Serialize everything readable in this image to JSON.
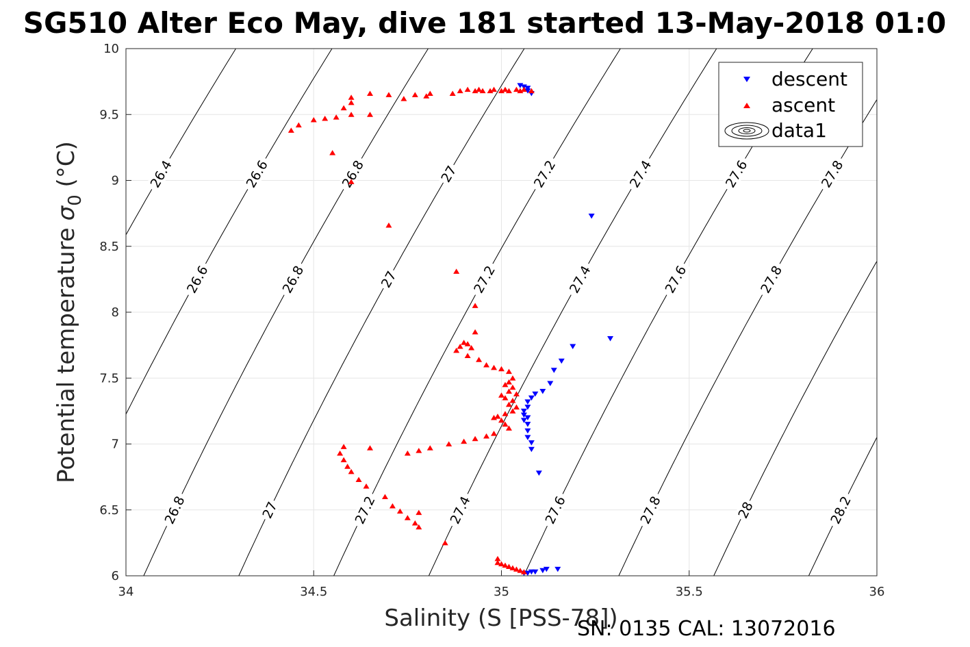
{
  "chart_data": {
    "type": "scatter",
    "title": "SG510 Alter Eco May, dive 181 started 13-May-2018 01:0",
    "xlabel": "Salinity (S [PSS-78])",
    "ylabel_main": "Potential temperature",
    "ylabel_sigma": "σ",
    "ylabel_sub": "0",
    "ylabel_unit": " (°C)",
    "xlim": [
      34,
      36
    ],
    "ylim": [
      6,
      10
    ],
    "xticks": [
      "34",
      "34.5",
      "35",
      "35.5",
      "36"
    ],
    "yticks": [
      "6",
      "6.5",
      "7",
      "7.5",
      "8",
      "8.5",
      "9",
      "9.5",
      "10"
    ],
    "grid": true,
    "legend_position": "top-right",
    "legend": [
      "descent",
      "ascent",
      "data1"
    ],
    "footer": "SN: 0135  CAL: 13072016",
    "colors": {
      "descent": "#0000ff",
      "ascent": "#ff0000",
      "contour": "#000000",
      "grid": "#e6e6e6"
    },
    "series": [
      {
        "name": "descent",
        "marker": "triangle-down",
        "points": [
          [
            35.05,
            9.72
          ],
          [
            35.06,
            9.71
          ],
          [
            35.07,
            9.7
          ],
          [
            35.07,
            9.68
          ],
          [
            35.08,
            9.66
          ],
          [
            35.24,
            8.73
          ],
          [
            35.29,
            7.8
          ],
          [
            35.19,
            7.74
          ],
          [
            35.16,
            7.63
          ],
          [
            35.14,
            7.56
          ],
          [
            35.13,
            7.46
          ],
          [
            35.11,
            7.4
          ],
          [
            35.09,
            7.38
          ],
          [
            35.08,
            7.35
          ],
          [
            35.07,
            7.32
          ],
          [
            35.07,
            7.28
          ],
          [
            35.06,
            7.25
          ],
          [
            35.06,
            7.22
          ],
          [
            35.07,
            7.2
          ],
          [
            35.06,
            7.18
          ],
          [
            35.07,
            7.15
          ],
          [
            35.07,
            7.1
          ],
          [
            35.07,
            7.05
          ],
          [
            35.08,
            7.01
          ],
          [
            35.08,
            6.96
          ],
          [
            35.1,
            6.78
          ],
          [
            35.06,
            6.02
          ],
          [
            35.07,
            6.02
          ],
          [
            35.08,
            6.03
          ],
          [
            35.09,
            6.03
          ],
          [
            35.11,
            6.04
          ],
          [
            35.12,
            6.05
          ],
          [
            35.15,
            6.05
          ]
        ]
      },
      {
        "name": "ascent",
        "marker": "triangle-up",
        "points": [
          [
            35.08,
            9.68
          ],
          [
            35.06,
            9.69
          ],
          [
            35.05,
            9.68
          ],
          [
            35.04,
            9.69
          ],
          [
            35.02,
            9.68
          ],
          [
            35.01,
            9.69
          ],
          [
            35.0,
            9.68
          ],
          [
            34.98,
            9.69
          ],
          [
            34.97,
            9.68
          ],
          [
            34.95,
            9.68
          ],
          [
            34.94,
            9.69
          ],
          [
            34.93,
            9.68
          ],
          [
            34.91,
            9.69
          ],
          [
            34.89,
            9.68
          ],
          [
            34.87,
            9.66
          ],
          [
            34.81,
            9.66
          ],
          [
            34.8,
            9.64
          ],
          [
            34.77,
            9.65
          ],
          [
            34.74,
            9.62
          ],
          [
            34.7,
            9.65
          ],
          [
            34.65,
            9.66
          ],
          [
            34.65,
            9.5
          ],
          [
            34.6,
            9.63
          ],
          [
            34.6,
            9.59
          ],
          [
            34.6,
            9.5
          ],
          [
            34.58,
            9.55
          ],
          [
            34.56,
            9.48
          ],
          [
            34.53,
            9.47
          ],
          [
            34.5,
            9.46
          ],
          [
            34.46,
            9.42
          ],
          [
            34.44,
            9.38
          ],
          [
            34.55,
            9.21
          ],
          [
            34.6,
            8.99
          ],
          [
            34.7,
            8.66
          ],
          [
            34.88,
            8.31
          ],
          [
            34.93,
            8.05
          ],
          [
            34.93,
            7.85
          ],
          [
            34.9,
            7.77
          ],
          [
            34.89,
            7.74
          ],
          [
            34.91,
            7.76
          ],
          [
            34.92,
            7.73
          ],
          [
            34.88,
            7.71
          ],
          [
            34.91,
            7.67
          ],
          [
            34.94,
            7.64
          ],
          [
            34.96,
            7.6
          ],
          [
            34.98,
            7.58
          ],
          [
            35.0,
            7.57
          ],
          [
            35.02,
            7.55
          ],
          [
            35.03,
            7.5
          ],
          [
            35.02,
            7.47
          ],
          [
            35.01,
            7.45
          ],
          [
            35.03,
            7.43
          ],
          [
            35.02,
            7.4
          ],
          [
            35.04,
            7.38
          ],
          [
            35.0,
            7.37
          ],
          [
            35.01,
            7.35
          ],
          [
            35.03,
            7.33
          ],
          [
            35.02,
            7.3
          ],
          [
            35.04,
            7.28
          ],
          [
            35.03,
            7.25
          ],
          [
            35.01,
            7.23
          ],
          [
            34.99,
            7.21
          ],
          [
            34.98,
            7.2
          ],
          [
            35.0,
            7.18
          ],
          [
            35.01,
            7.15
          ],
          [
            35.02,
            7.12
          ],
          [
            34.98,
            7.08
          ],
          [
            34.96,
            7.06
          ],
          [
            34.93,
            7.04
          ],
          [
            34.9,
            7.02
          ],
          [
            34.86,
            7.0
          ],
          [
            34.81,
            6.97
          ],
          [
            34.78,
            6.95
          ],
          [
            34.75,
            6.93
          ],
          [
            34.65,
            6.97
          ],
          [
            34.58,
            6.98
          ],
          [
            34.57,
            6.93
          ],
          [
            34.58,
            6.88
          ],
          [
            34.59,
            6.83
          ],
          [
            34.6,
            6.79
          ],
          [
            34.62,
            6.73
          ],
          [
            34.64,
            6.68
          ],
          [
            34.69,
            6.6
          ],
          [
            34.71,
            6.53
          ],
          [
            34.73,
            6.49
          ],
          [
            34.75,
            6.44
          ],
          [
            34.77,
            6.4
          ],
          [
            34.78,
            6.48
          ],
          [
            34.78,
            6.37
          ],
          [
            34.85,
            6.25
          ],
          [
            34.99,
            6.13
          ],
          [
            34.99,
            6.1
          ],
          [
            35.0,
            6.09
          ],
          [
            35.01,
            6.08
          ],
          [
            35.02,
            6.07
          ],
          [
            35.03,
            6.06
          ],
          [
            35.04,
            6.05
          ],
          [
            35.05,
            6.04
          ],
          [
            35.06,
            6.03
          ]
        ]
      }
    ],
    "contours": [
      {
        "level": 26.4,
        "label": "26.4"
      },
      {
        "level": 26.6,
        "label": "26.6"
      },
      {
        "level": 26.8,
        "label": "26.8"
      },
      {
        "level": 27.0,
        "label": "27"
      },
      {
        "level": 27.2,
        "label": "27.2"
      },
      {
        "level": 27.4,
        "label": "27.4"
      },
      {
        "level": 27.6,
        "label": "27.6"
      },
      {
        "level": 27.8,
        "label": "27.8"
      },
      {
        "level": 28.0,
        "label": "28"
      },
      {
        "level": 28.2,
        "label": "28.2"
      }
    ]
  }
}
